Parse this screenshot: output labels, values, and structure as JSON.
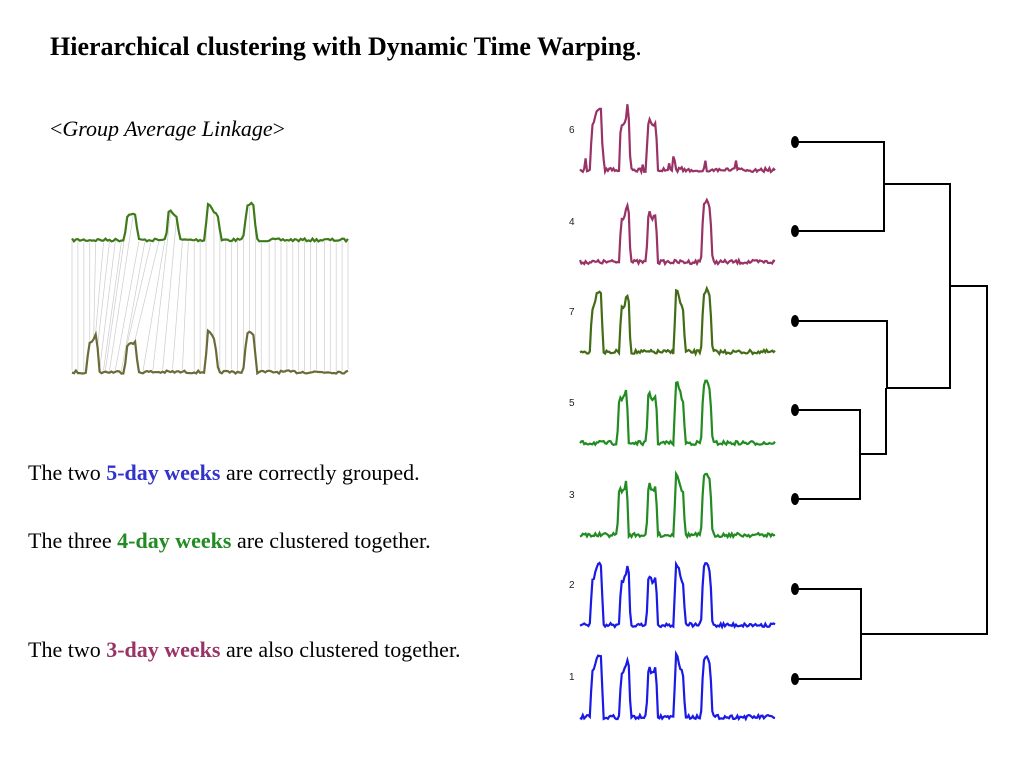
{
  "title": {
    "text": "Hierarchical clustering with Dynamic Time Warping",
    "trailing": "."
  },
  "subtitle": {
    "open": "<",
    "text": "Group Average Linkage",
    "close": ">"
  },
  "paragraphs": [
    {
      "pre": "The two ",
      "highlight": "5-day weeks",
      "post": " are correctly grouped.",
      "color": "#3333cc"
    },
    {
      "pre": "The three ",
      "highlight": "4-day weeks",
      "post": " are clustered together.",
      "color": "#228b22"
    },
    {
      "pre": "The two ",
      "highlight": "3-day weeks",
      "post": " are also clustered together.",
      "color": "#993366"
    }
  ],
  "series_labels": [
    "6",
    "4",
    "7",
    "5",
    "3",
    "2",
    "1"
  ],
  "colors": {
    "three_day": "#993366",
    "four_day_dark": "#446b16",
    "four_day": "#228b22",
    "five_day": "#1a1ae6",
    "dtw_top": "#3e7a1a",
    "dtw_bottom": "#6b6b3a",
    "warp_lines": "#cccccc",
    "dendrogram": "#000000"
  }
}
